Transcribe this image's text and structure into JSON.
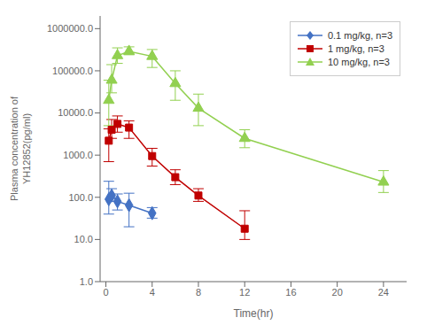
{
  "chart_data": {
    "type": "line",
    "xlabel": "Time(hr)",
    "ylabel": "Plasma concentration of\nYH12852(pg/ml)",
    "log": "y",
    "grid": false,
    "legend": "upper right",
    "xlim": [
      -0.5,
      26
    ],
    "ylim": [
      1.0,
      2000000.0
    ],
    "xticks": [
      0,
      4,
      8,
      12,
      16,
      20,
      24
    ],
    "yticks": [
      {
        "value": 1.0,
        "label": "1.0"
      },
      {
        "value": 10.0,
        "label": "10.0"
      },
      {
        "value": 100.0,
        "label": "100.0"
      },
      {
        "value": 1000.0,
        "label": "1000.0"
      },
      {
        "value": 10000.0,
        "label": "10000.0"
      },
      {
        "value": 100000.0,
        "label": "100000.0"
      },
      {
        "value": 1000000.0,
        "label": "1000000.0"
      }
    ],
    "series": [
      {
        "name": "0.1 mg/kg, n=3",
        "color": "#4472C4",
        "marker": "diamond",
        "x": [
          0.25,
          0.5,
          1,
          2,
          4
        ],
        "values": [
          90,
          110,
          80,
          65,
          42
        ],
        "error_lo": [
          50,
          30,
          30,
          45,
          10
        ],
        "error_hi": [
          150,
          50,
          40,
          60,
          15
        ]
      },
      {
        "name": "1 mg/kg, n=3",
        "color": "#C00000",
        "marker": "square",
        "x": [
          0.25,
          0.5,
          1,
          2,
          4,
          6,
          8,
          12
        ],
        "values": [
          2200,
          4000,
          5500,
          4500,
          950,
          300,
          110,
          18
        ],
        "error_lo": [
          1500,
          1500,
          2000,
          2000,
          400,
          100,
          30,
          8
        ],
        "error_hi": [
          2000,
          3000,
          3000,
          2000,
          500,
          150,
          50,
          30
        ]
      },
      {
        "name": "10 mg/kg, n=3",
        "color": "#92D050",
        "marker": "triangle",
        "x": [
          0.25,
          0.5,
          1,
          2,
          4,
          6,
          8,
          12,
          24
        ],
        "values": [
          20000,
          60000,
          230000,
          290000,
          220000,
          50000,
          13000,
          2500,
          230
        ],
        "error_lo": [
          15000,
          30000,
          80000,
          50000,
          100000,
          30000,
          8000,
          1000,
          100
        ],
        "error_hi": [
          40000,
          80000,
          120000,
          80000,
          100000,
          50000,
          15000,
          1500,
          200
        ]
      }
    ]
  }
}
